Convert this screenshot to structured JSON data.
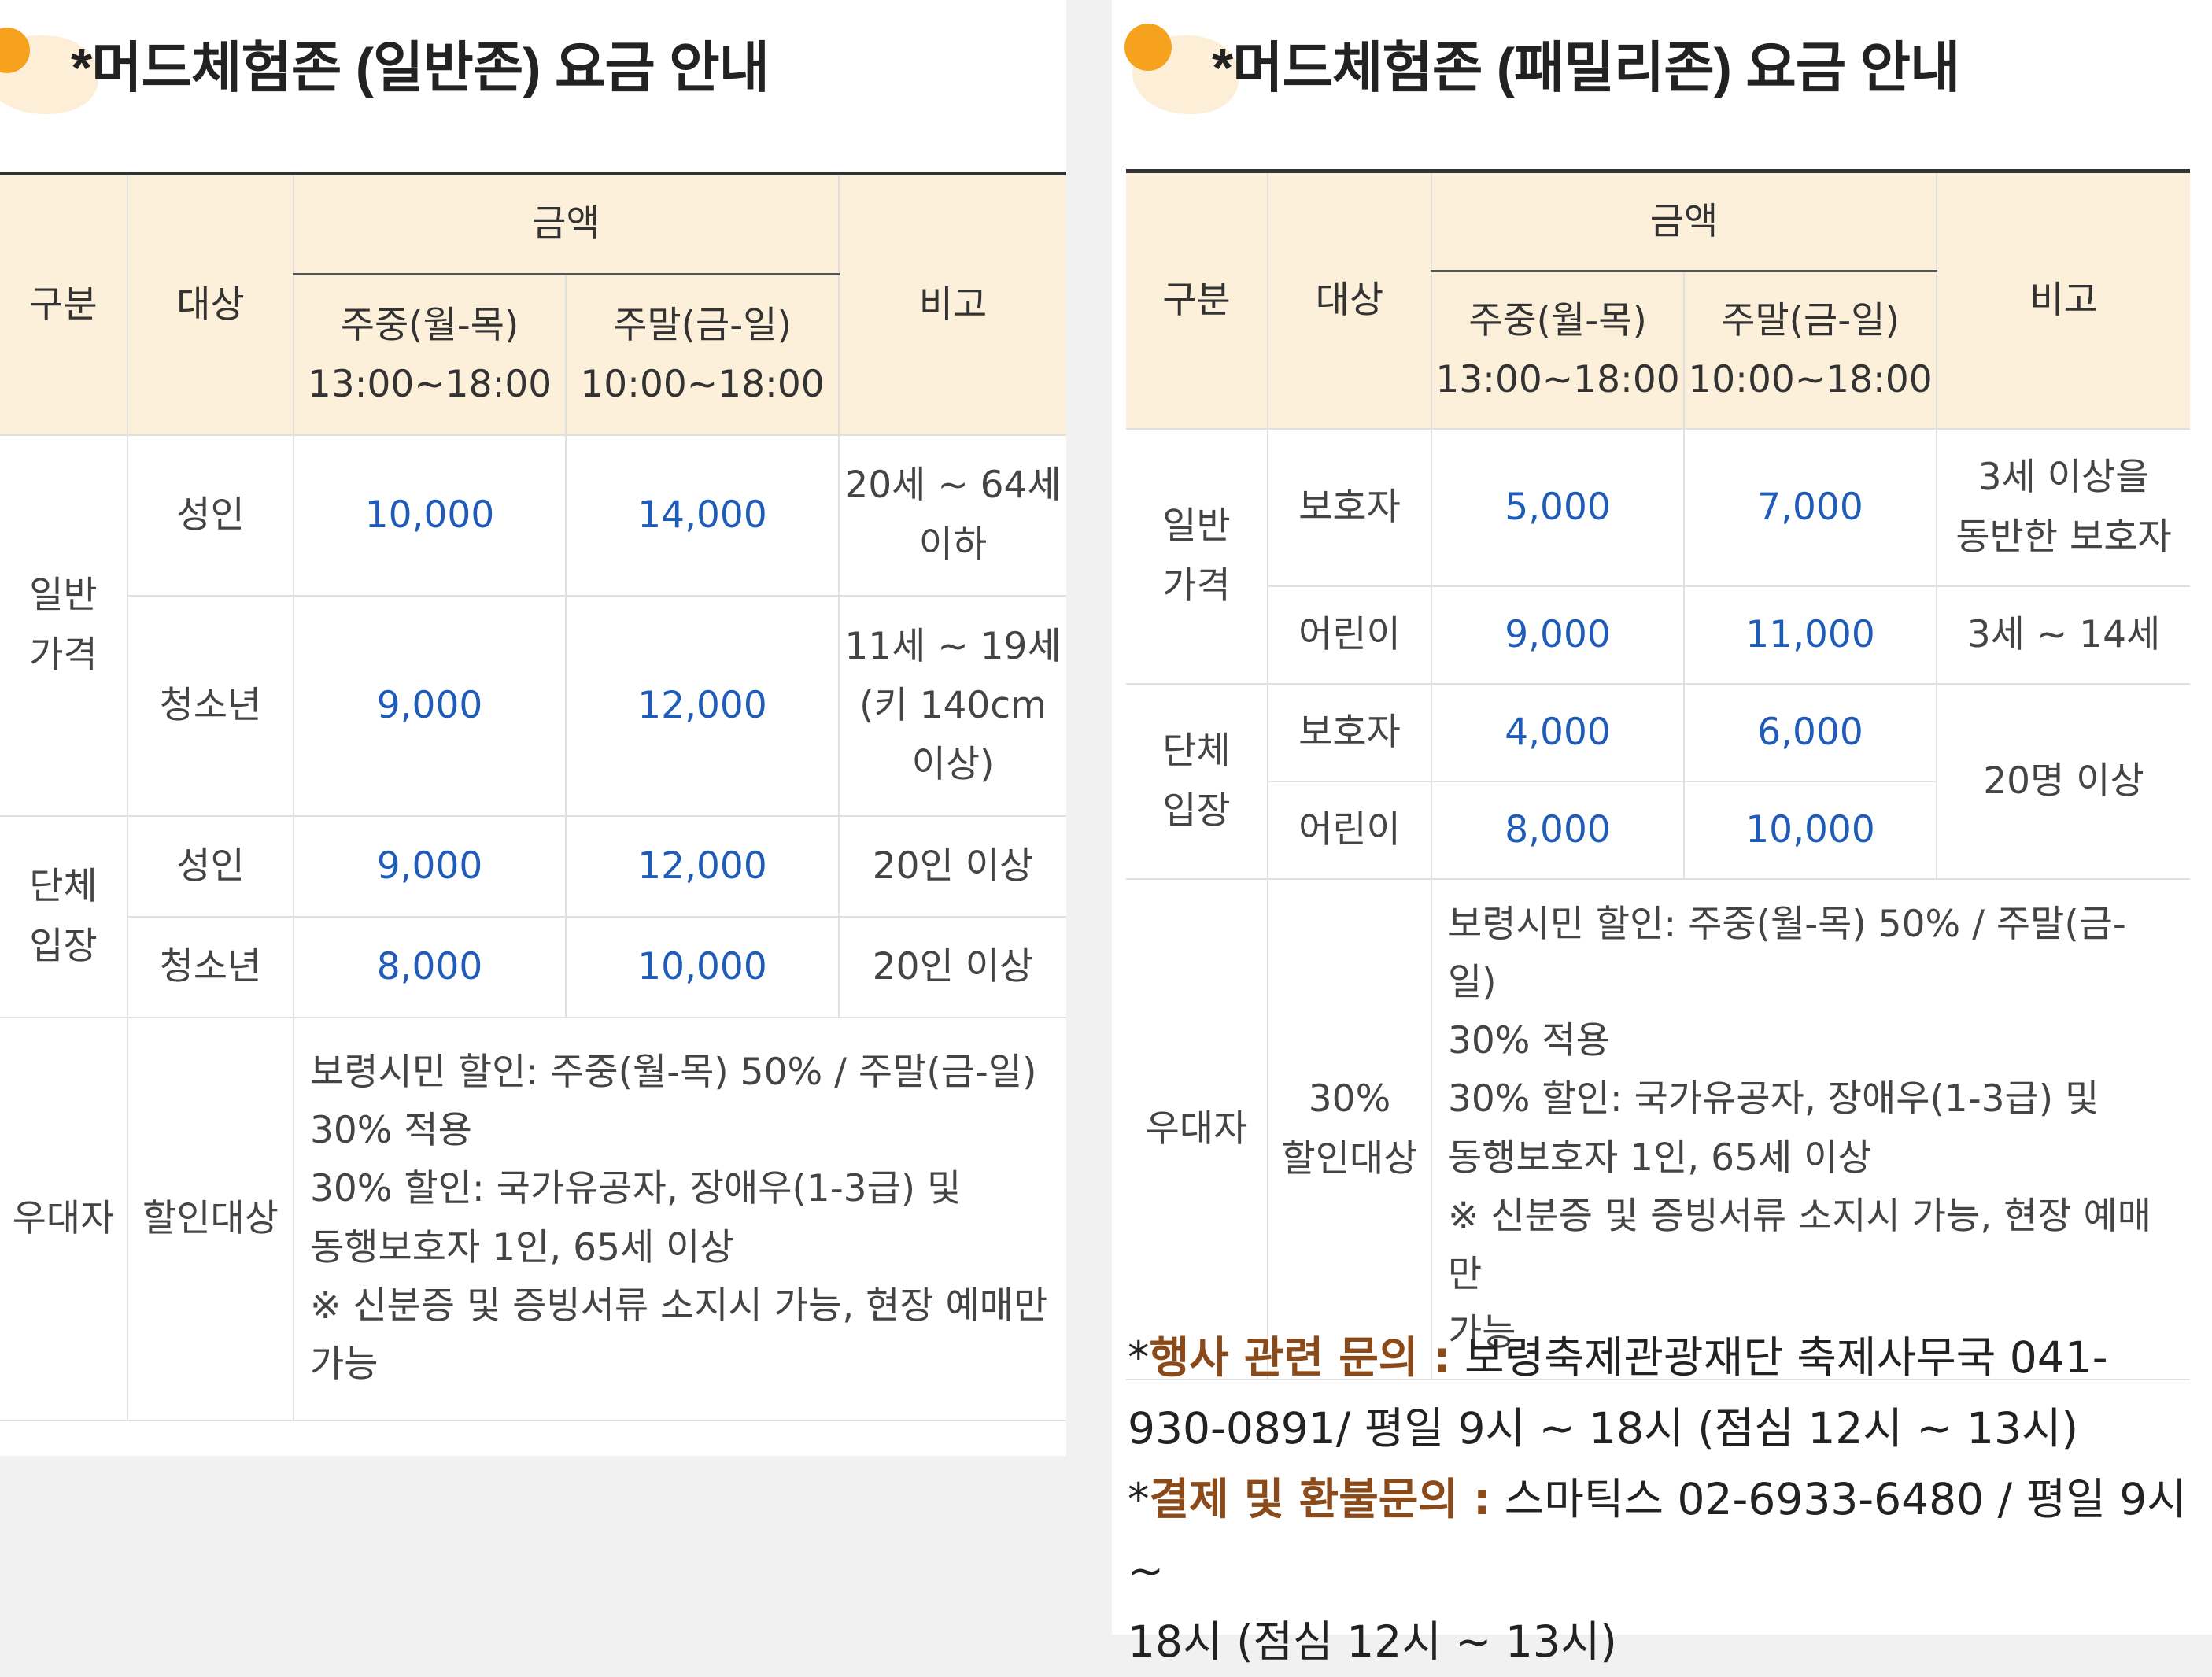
{
  "general_zone": {
    "title": "*머드체험존 (일반존) 요금 안내",
    "headers": {
      "category": "구분",
      "target": "대상",
      "amount": "금액",
      "weekday": "주중(월-목)",
      "weekday_time": "13:00~18:00",
      "weekend": "주말(금-일)",
      "weekend_time": "10:00~18:00",
      "note": "비고"
    },
    "groups": {
      "regular": [
        "일반",
        "가격"
      ],
      "group": [
        "단체",
        "입장"
      ],
      "preferential": "우대자"
    },
    "rows": [
      {
        "target": "성인",
        "weekday": "10,000",
        "weekend": "14,000",
        "note": [
          "20세 ~ 64세",
          "이하"
        ]
      },
      {
        "target": "청소년",
        "weekday": "9,000",
        "weekend": "12,000",
        "note": [
          "11세 ~ 19세",
          "(키 140cm",
          "이상)"
        ]
      },
      {
        "target": "성인",
        "weekday": "9,000",
        "weekend": "12,000",
        "note": [
          "20인 이상"
        ]
      },
      {
        "target": "청소년",
        "weekday": "8,000",
        "weekend": "10,000",
        "note": [
          "20인 이상"
        ]
      }
    ],
    "discount": {
      "target": "할인대상",
      "lines": [
        "보령시민 할인: 주중(월-목) 50% / 주말(금-일)",
        "30% 적용",
        "30% 할인: 국가유공자, 장애우(1-3급) 및",
        "동행보호자 1인, 65세 이상",
        "※ 신분증 및 증빙서류 소지시 가능, 현장 예매만",
        "가능"
      ]
    }
  },
  "family_zone": {
    "title": "*머드체험존 (패밀리존) 요금 안내",
    "headers": {
      "category": "구분",
      "target": "대상",
      "amount": "금액",
      "weekday": "주중(월-목)",
      "weekday_time": "13:00~18:00",
      "weekend": "주말(금-일)",
      "weekend_time": "10:00~18:00",
      "note": "비고"
    },
    "groups": {
      "regular": [
        "일반",
        "가격"
      ],
      "group": [
        "단체",
        "입장"
      ],
      "preferential": "우대자"
    },
    "rows": [
      {
        "target": "보호자",
        "weekday": "5,000",
        "weekend": "7,000",
        "note": [
          "3세 이상을",
          "동반한 보호자"
        ]
      },
      {
        "target": "어린이",
        "weekday": "9,000",
        "weekend": "11,000",
        "note": [
          "3세 ~ 14세"
        ]
      },
      {
        "target": "보호자",
        "weekday": "4,000",
        "weekend": "6,000"
      },
      {
        "target": "어린이",
        "weekday": "8,000",
        "weekend": "10,000"
      }
    ],
    "group_note": "20명 이상",
    "discount": {
      "target": [
        "30%",
        "할인대상"
      ],
      "lines": [
        "보령시민 할인: 주중(월-목) 50% / 주말(금-일)",
        "30% 적용",
        "30% 할인: 국가유공자, 장애우(1-3급) 및",
        "동행보호자 1인, 65세 이상",
        "※ 신분증 및 증빙서류 소지시 가능, 현장 예매만",
        "가능"
      ]
    }
  },
  "contacts": {
    "event_label": "행사 관련 문의 :",
    "event_line1": "보령축제관광재단 축제사무국 041-",
    "event_line2": "930-0891/ 평일 9시 ~ 18시 (점심 12시 ~ 13시)",
    "payment_label": "결제 및 환불문의 :",
    "payment_line1": "스마틱스 02-6933-6480 / 평일 9시 ~",
    "payment_line2": "18시 (점심 12시 ~ 13시)"
  },
  "colors": {
    "header_bg": "#fdf0db",
    "price": "#1f5bb8",
    "contact_label": "#8b4a1a",
    "sun": "#f6a21e"
  }
}
